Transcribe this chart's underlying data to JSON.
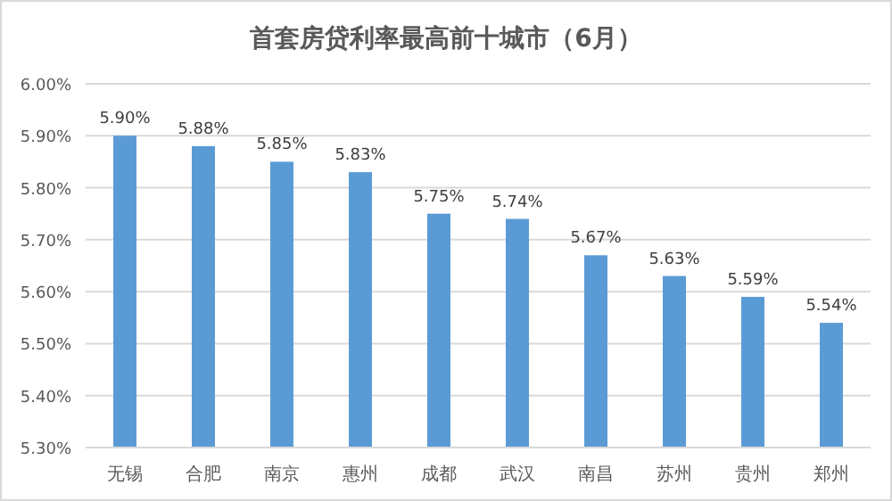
{
  "chart_data": {
    "type": "bar",
    "title": "首套房贷利率最高前十城市（6月）",
    "categories": [
      "无锡",
      "合肥",
      "南京",
      "惠州",
      "成都",
      "武汉",
      "南昌",
      "苏州",
      "贵州",
      "郑州"
    ],
    "values": [
      5.9,
      5.88,
      5.85,
      5.83,
      5.75,
      5.74,
      5.67,
      5.63,
      5.59,
      5.54
    ],
    "value_labels": [
      "5.90%",
      "5.88%",
      "5.85%",
      "5.83%",
      "5.75%",
      "5.74%",
      "5.67%",
      "5.63%",
      "5.59%",
      "5.54%"
    ],
    "color": "#5b9bd5",
    "ylim": [
      5.3,
      6.0
    ],
    "yticks": [
      {
        "value": 5.3,
        "label": "5.30%"
      },
      {
        "value": 5.4,
        "label": "5.40%"
      },
      {
        "value": 5.5,
        "label": "5.50%"
      },
      {
        "value": 5.6,
        "label": "5.60%"
      },
      {
        "value": 5.7,
        "label": "5.70%"
      },
      {
        "value": 5.8,
        "label": "5.80%"
      },
      {
        "value": 5.9,
        "label": "5.90%"
      },
      {
        "value": 6.0,
        "label": "6.00%"
      }
    ],
    "grid": "y"
  }
}
